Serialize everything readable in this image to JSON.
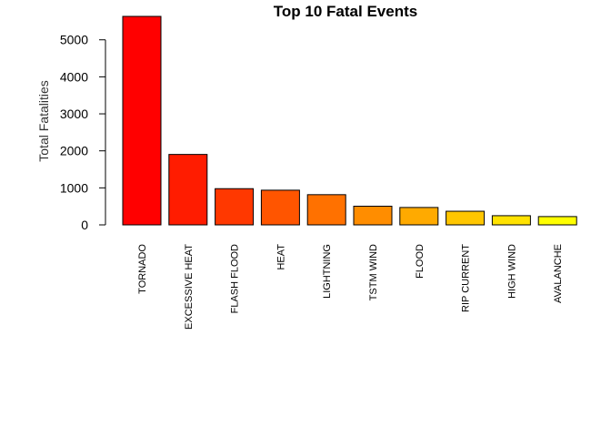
{
  "chart_data": {
    "type": "bar",
    "title": "Top 10 Fatal Events",
    "xlabel": "",
    "ylabel": "Total Fatalities",
    "categories": [
      "TORNADO",
      "EXCESSIVE HEAT",
      "FLASH FLOOD",
      "HEAT",
      "LIGHTNING",
      "TSTM WIND",
      "FLOOD",
      "RIP CURRENT",
      "HIGH WIND",
      "AVALANCHE"
    ],
    "values": [
      5633,
      1903,
      978,
      937,
      816,
      504,
      470,
      368,
      248,
      224
    ],
    "colors": [
      "#FF0000",
      "#FF1C00",
      "#FF3800",
      "#FF5500",
      "#FF7100",
      "#FF8D00",
      "#FFAA00",
      "#FFC600",
      "#FFE200",
      "#FFFF00"
    ],
    "yticks": [
      0,
      1000,
      2000,
      3000,
      4000,
      5000
    ],
    "ylim": [
      0,
      5633
    ],
    "grid": false,
    "legend": "none"
  }
}
